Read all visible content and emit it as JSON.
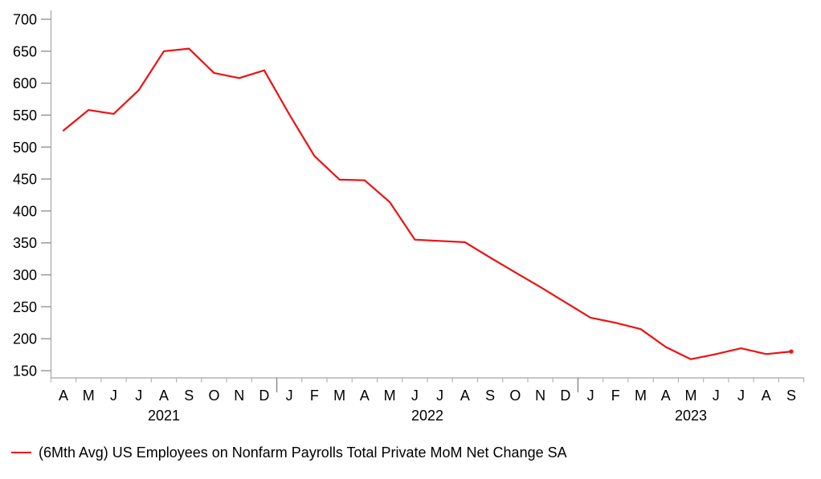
{
  "chart_data": {
    "type": "line",
    "title": "",
    "legend": "(6Mth Avg) US Employees on Nonfarm Payrolls Total Private MoM Net Change SA",
    "legend_position": "bottom-left",
    "grid": false,
    "line_color": "#ee1111",
    "axis_line_color": "#b3b3b3",
    "tick_color": "#8c8c8c",
    "text_color": "#000000",
    "ylim": [
      150,
      700
    ],
    "y_ticks": [
      700,
      650,
      600,
      550,
      500,
      450,
      400,
      350,
      300,
      250,
      200,
      150
    ],
    "x": [
      "Apr 2021",
      "May 2021",
      "Jun 2021",
      "Jul 2021",
      "Aug 2021",
      "Sep 2021",
      "Oct 2021",
      "Nov 2021",
      "Dec 2021",
      "Jan 2022",
      "Feb 2022",
      "Mar 2022",
      "Apr 2022",
      "May 2022",
      "Jun 2022",
      "Jul 2022",
      "Aug 2022",
      "Sep 2022",
      "Oct 2022",
      "Nov 2022",
      "Dec 2022",
      "Jan 2023",
      "Feb 2023",
      "Mar 2023",
      "Apr 2023",
      "May 2023",
      "Jun 2023",
      "Jul 2023",
      "Aug 2023",
      "Sep 2023"
    ],
    "x_tick_letters": [
      "A",
      "M",
      "J",
      "J",
      "A",
      "S",
      "O",
      "N",
      "D",
      "J",
      "F",
      "M",
      "A",
      "M",
      "J",
      "J",
      "A",
      "S",
      "O",
      "N",
      "D",
      "J",
      "F",
      "M",
      "A",
      "M",
      "J",
      "J",
      "A",
      "S"
    ],
    "years": [
      {
        "label": "2021",
        "months": 9
      },
      {
        "label": "2022",
        "months": 12
      },
      {
        "label": "2023",
        "months": 9
      }
    ],
    "values": [
      526,
      558,
      552,
      589,
      650,
      654,
      616,
      608,
      620,
      551,
      486,
      449,
      448,
      414,
      355,
      353,
      351,
      327,
      304,
      281,
      257,
      233,
      225,
      215,
      187,
      168,
      176,
      185,
      176,
      180
    ]
  }
}
